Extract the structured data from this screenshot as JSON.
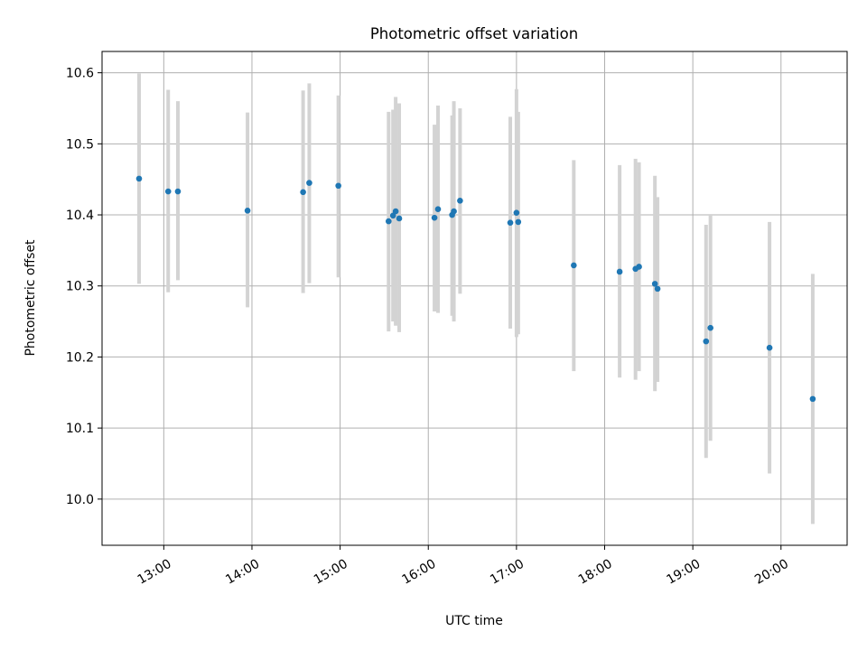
{
  "chart_data": {
    "type": "scatter",
    "title": "Photometric offset variation",
    "xlabel": "UTC time",
    "ylabel": "Photometric offset",
    "x_unit": "hours UTC",
    "xlim": [
      12.3,
      20.75
    ],
    "ylim": [
      9.935,
      10.63
    ],
    "x_ticks": [
      {
        "value": 13,
        "label": "13:00"
      },
      {
        "value": 14,
        "label": "14:00"
      },
      {
        "value": 15,
        "label": "15:00"
      },
      {
        "value": 16,
        "label": "16:00"
      },
      {
        "value": 17,
        "label": "17:00"
      },
      {
        "value": 18,
        "label": "18:00"
      },
      {
        "value": 19,
        "label": "19:00"
      },
      {
        "value": 20,
        "label": "20:00"
      }
    ],
    "y_ticks": [
      {
        "value": 10.0,
        "label": "10.0"
      },
      {
        "value": 10.1,
        "label": "10.1"
      },
      {
        "value": 10.2,
        "label": "10.2"
      },
      {
        "value": 10.3,
        "label": "10.3"
      },
      {
        "value": 10.4,
        "label": "10.4"
      },
      {
        "value": 10.5,
        "label": "10.5"
      },
      {
        "value": 10.6,
        "label": "10.6"
      }
    ],
    "grid": true,
    "point_color": "#1f77b4",
    "errorbar_color": "#d3d3d3",
    "points": [
      {
        "x": 12.72,
        "y": 10.451,
        "low": 10.303,
        "high": 10.599
      },
      {
        "x": 13.05,
        "y": 10.433,
        "low": 10.291,
        "high": 10.576
      },
      {
        "x": 13.16,
        "y": 10.433,
        "low": 10.308,
        "high": 10.56
      },
      {
        "x": 13.95,
        "y": 10.406,
        "low": 10.27,
        "high": 10.544
      },
      {
        "x": 14.58,
        "y": 10.432,
        "low": 10.29,
        "high": 10.575
      },
      {
        "x": 14.65,
        "y": 10.445,
        "low": 10.304,
        "high": 10.585
      },
      {
        "x": 14.98,
        "y": 10.441,
        "low": 10.312,
        "high": 10.568
      },
      {
        "x": 15.55,
        "y": 10.391,
        "low": 10.236,
        "high": 10.545
      },
      {
        "x": 15.6,
        "y": 10.399,
        "low": 10.25,
        "high": 10.548
      },
      {
        "x": 15.63,
        "y": 10.405,
        "low": 10.244,
        "high": 10.566
      },
      {
        "x": 15.67,
        "y": 10.395,
        "low": 10.235,
        "high": 10.557
      },
      {
        "x": 16.07,
        "y": 10.396,
        "low": 10.264,
        "high": 10.527
      },
      {
        "x": 16.11,
        "y": 10.408,
        "low": 10.262,
        "high": 10.554
      },
      {
        "x": 16.27,
        "y": 10.4,
        "low": 10.258,
        "high": 10.54
      },
      {
        "x": 16.29,
        "y": 10.405,
        "low": 10.25,
        "high": 10.56
      },
      {
        "x": 16.36,
        "y": 10.42,
        "low": 10.289,
        "high": 10.55
      },
      {
        "x": 16.93,
        "y": 10.389,
        "low": 10.24,
        "high": 10.538
      },
      {
        "x": 17.0,
        "y": 10.403,
        "low": 10.228,
        "high": 10.577
      },
      {
        "x": 17.02,
        "y": 10.39,
        "low": 10.232,
        "high": 10.545
      },
      {
        "x": 17.65,
        "y": 10.329,
        "low": 10.18,
        "high": 10.477
      },
      {
        "x": 18.17,
        "y": 10.32,
        "low": 10.171,
        "high": 10.47
      },
      {
        "x": 18.35,
        "y": 10.324,
        "low": 10.168,
        "high": 10.479
      },
      {
        "x": 18.39,
        "y": 10.327,
        "low": 10.18,
        "high": 10.474
      },
      {
        "x": 18.57,
        "y": 10.303,
        "low": 10.152,
        "high": 10.455
      },
      {
        "x": 18.6,
        "y": 10.296,
        "low": 10.165,
        "high": 10.425
      },
      {
        "x": 19.15,
        "y": 10.222,
        "low": 10.058,
        "high": 10.386
      },
      {
        "x": 19.2,
        "y": 10.241,
        "low": 10.082,
        "high": 10.4
      },
      {
        "x": 19.87,
        "y": 10.213,
        "low": 10.036,
        "high": 10.39
      },
      {
        "x": 20.36,
        "y": 10.141,
        "low": 9.965,
        "high": 10.317
      }
    ]
  }
}
